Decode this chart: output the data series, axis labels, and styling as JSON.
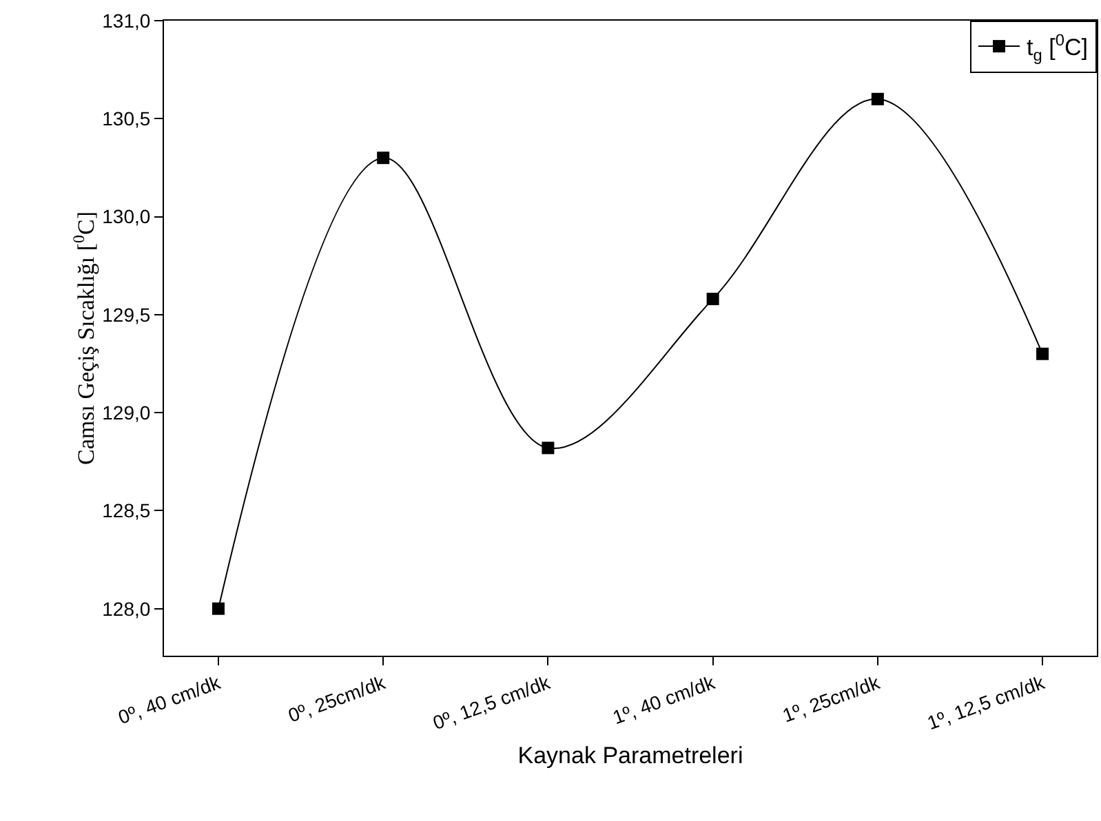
{
  "chart_data": {
    "type": "line",
    "xlabel": "Kaynak Parametreleri",
    "ylabel": "Camsı Geçiş Sıcaklığı [$^{0}$C]",
    "categories": [
      "0º, 40 cm/dk",
      "0º, 25cm/dk",
      "0º, 12,5 cm/dk",
      "1º, 40 cm/dk",
      "1º, 25cm/dk",
      "1º, 12,5 cm/dk"
    ],
    "series": [
      {
        "name": "t$_{g}$ [$^{0}$C]",
        "color": "#000000",
        "values": [
          128.0,
          130.3,
          128.82,
          129.58,
          130.6,
          129.3
        ]
      }
    ],
    "ylim": [
      127.76,
      131.0
    ],
    "yticks": [
      {
        "value": 128.0,
        "label": "128,0"
      },
      {
        "value": 128.5,
        "label": "128,5"
      },
      {
        "value": 129.0,
        "label": "129,0"
      },
      {
        "value": 129.5,
        "label": "129,5"
      },
      {
        "value": 130.0,
        "label": "130,0"
      },
      {
        "value": 130.5,
        "label": "130,5"
      },
      {
        "value": 131.0,
        "label": "131,0"
      }
    ],
    "grid": false,
    "legend": "top right",
    "marker": "square",
    "line_style": "solid"
  }
}
